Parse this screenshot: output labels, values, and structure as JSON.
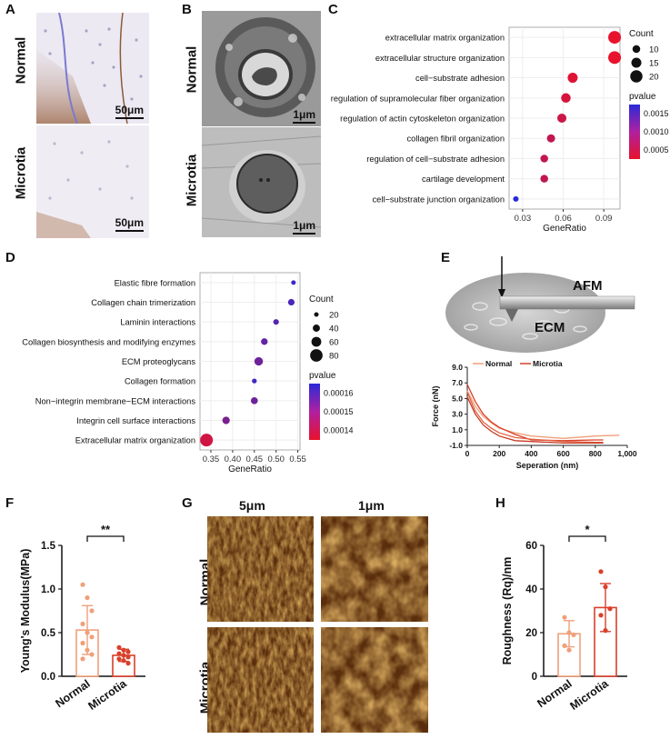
{
  "panel_labels": {
    "A": "A",
    "B": "B",
    "C": "C",
    "D": "D",
    "E": "E",
    "F": "F",
    "G": "G",
    "H": "H"
  },
  "row_labels": {
    "normal": "Normal",
    "microtia": "Microtia"
  },
  "scale_bars": {
    "a": "50μm",
    "b": "1μm"
  },
  "afm_labels": {
    "afm": "AFM",
    "ecm": "ECM",
    "scan_5": "5μm",
    "scan_1": "1μm"
  },
  "significance": {
    "f": "**",
    "h": "*"
  },
  "colors": {
    "normal": "#f0a07a",
    "microtia": "#d9402a",
    "dot_low": "#e8122c",
    "dot_high": "#2a2ad8"
  },
  "chart_data": [
    {
      "panel": "C",
      "type": "scatter",
      "categories": [
        "extracellular matrix organization",
        "extracellular structure organization",
        "cell−substrate adhesion",
        "regulation of supramolecular fiber organization",
        "regulation of actin cytoskeleton organization",
        "collagen fibril organization",
        "regulation of cell−substrate adhesion",
        "cartilage development",
        "cell−substrate junction organization"
      ],
      "x": [
        0.098,
        0.098,
        0.067,
        0.062,
        0.059,
        0.051,
        0.046,
        0.046,
        0.025
      ],
      "size": [
        21,
        21,
        15,
        14,
        13,
        11,
        10,
        10,
        5
      ],
      "pvalue": [
        1e-05,
        1e-05,
        0.0001,
        0.0002,
        0.0003,
        0.0004,
        0.0004,
        0.0004,
        0.0019
      ],
      "xlabel": "GeneRatio",
      "xticks": [
        "0.03",
        "0.06",
        "0.09"
      ],
      "xlim": [
        0.02,
        0.102
      ],
      "legend_count_title": "Count",
      "legend_count": [
        "10",
        "15",
        "20"
      ],
      "legend_p_title": "pvalue",
      "legend_p": [
        "0.0015",
        "0.0010",
        "0.0005"
      ],
      "p_range": [
        1e-05,
        0.0019
      ]
    },
    {
      "panel": "D",
      "type": "scatter",
      "categories": [
        "Elastic fibre formation",
        "Collagen chain trimerization",
        "Laminin interactions",
        "Collagen biosynthesis and modifying enzymes",
        "ECM proteoglycans",
        "Collagen formation",
        "Non−integrin membrane−ECM interactions",
        "Integrin cell surface interactions",
        "Extracellular matrix organization"
      ],
      "x": [
        0.54,
        0.535,
        0.5,
        0.473,
        0.46,
        0.45,
        0.45,
        0.385,
        0.34
      ],
      "size": [
        20,
        35,
        28,
        36,
        50,
        22,
        38,
        42,
        82
      ],
      "pvalue": [
        0.000167,
        0.000163,
        0.000161,
        0.000158,
        0.000156,
        0.000165,
        0.000156,
        0.000153,
        0.000135
      ],
      "xlabel": "GeneRatio",
      "xticks": [
        "0.35",
        "0.40",
        "0.45",
        "0.50",
        "0.55"
      ],
      "xlim": [
        0.325,
        0.555
      ],
      "legend_count_title": "Count",
      "legend_count": [
        "20",
        "40",
        "60",
        "80"
      ],
      "legend_p_title": "pvalue",
      "legend_p": [
        "0.00016",
        "0.00015",
        "0.00014"
      ],
      "p_range": [
        0.00013,
        0.00017
      ]
    },
    {
      "panel": "E",
      "type": "line",
      "xlabel": "Seperation (nm)",
      "ylabel": "Force (nN)",
      "xticks": [
        "0",
        "200",
        "400",
        "600",
        "800",
        "1,000"
      ],
      "xtick_vals": [
        0,
        200,
        400,
        600,
        800,
        1000
      ],
      "yticks": [
        "9.0",
        "7.0",
        "5.0",
        "3.0",
        "1.0",
        "-1.0"
      ],
      "ytick_vals": [
        9,
        7,
        5,
        3,
        1,
        -1
      ],
      "xlim": [
        0,
        1000
      ],
      "ylim": [
        -1,
        9
      ],
      "legend": [
        "Normal",
        "Microtia"
      ],
      "series": [
        {
          "values": [
            [
              0,
              6.0
            ],
            [
              50,
              4.0
            ],
            [
              100,
              2.7
            ],
            [
              150,
              1.9
            ],
            [
              200,
              1.2
            ],
            [
              300,
              0.6
            ],
            [
              400,
              0.2
            ],
            [
              600,
              -0.1
            ],
            [
              800,
              0.2
            ],
            [
              950,
              0.3
            ]
          ]
        },
        {
          "values": [
            [
              0,
              6.8
            ],
            [
              50,
              4.6
            ],
            [
              100,
              3.0
            ],
            [
              150,
              2.0
            ],
            [
              200,
              1.3
            ],
            [
              300,
              0.4
            ],
            [
              400,
              -0.3
            ],
            [
              600,
              -0.4
            ],
            [
              800,
              -0.3
            ],
            [
              850,
              -0.3
            ]
          ]
        },
        {
          "values": [
            [
              0,
              5.8
            ],
            [
              50,
              3.4
            ],
            [
              100,
              2.0
            ],
            [
              150,
              1.2
            ],
            [
              200,
              0.6
            ],
            [
              300,
              0.0
            ],
            [
              400,
              -0.2
            ],
            [
              600,
              -0.5
            ],
            [
              800,
              -0.6
            ],
            [
              850,
              -0.6
            ]
          ]
        },
        {
          "values": [
            [
              0,
              5.2
            ],
            [
              50,
              3.0
            ],
            [
              100,
              1.6
            ],
            [
              150,
              0.8
            ],
            [
              200,
              0.2
            ],
            [
              300,
              -0.4
            ],
            [
              400,
              -0.5
            ],
            [
              600,
              -0.7
            ],
            [
              800,
              -0.7
            ],
            [
              850,
              -0.7
            ]
          ]
        }
      ]
    },
    {
      "panel": "F",
      "type": "bar",
      "ylabel": "Young's Modulus(MPa)",
      "categories": [
        "Normal",
        "Microtia"
      ],
      "values": [
        0.53,
        0.24
      ],
      "err": [
        0.28,
        0.07
      ],
      "ylim": [
        0,
        1.5
      ],
      "yticks": [
        "0.0",
        "0.5",
        "1.0",
        "1.5"
      ],
      "ytick_vals": [
        0,
        0.5,
        1,
        1.5
      ],
      "points": [
        [
          1.05,
          0.9,
          0.75,
          0.6,
          0.5,
          0.45,
          0.38,
          0.3,
          0.25,
          0.2
        ],
        [
          0.33,
          0.3,
          0.28,
          0.26,
          0.24,
          0.22,
          0.2,
          0.18,
          0.15
        ]
      ]
    },
    {
      "panel": "H",
      "type": "bar",
      "ylabel": "Roughness (Rq)/nm",
      "categories": [
        "Normal",
        "Microtia"
      ],
      "values": [
        19.5,
        31.5
      ],
      "err": [
        6,
        11
      ],
      "ylim": [
        0,
        60
      ],
      "yticks": [
        "0",
        "20",
        "40",
        "60"
      ],
      "ytick_vals": [
        0,
        20,
        40,
        60
      ],
      "points": [
        [
          27,
          20,
          19,
          14,
          12
        ],
        [
          48,
          41,
          31,
          28,
          21
        ]
      ]
    }
  ]
}
